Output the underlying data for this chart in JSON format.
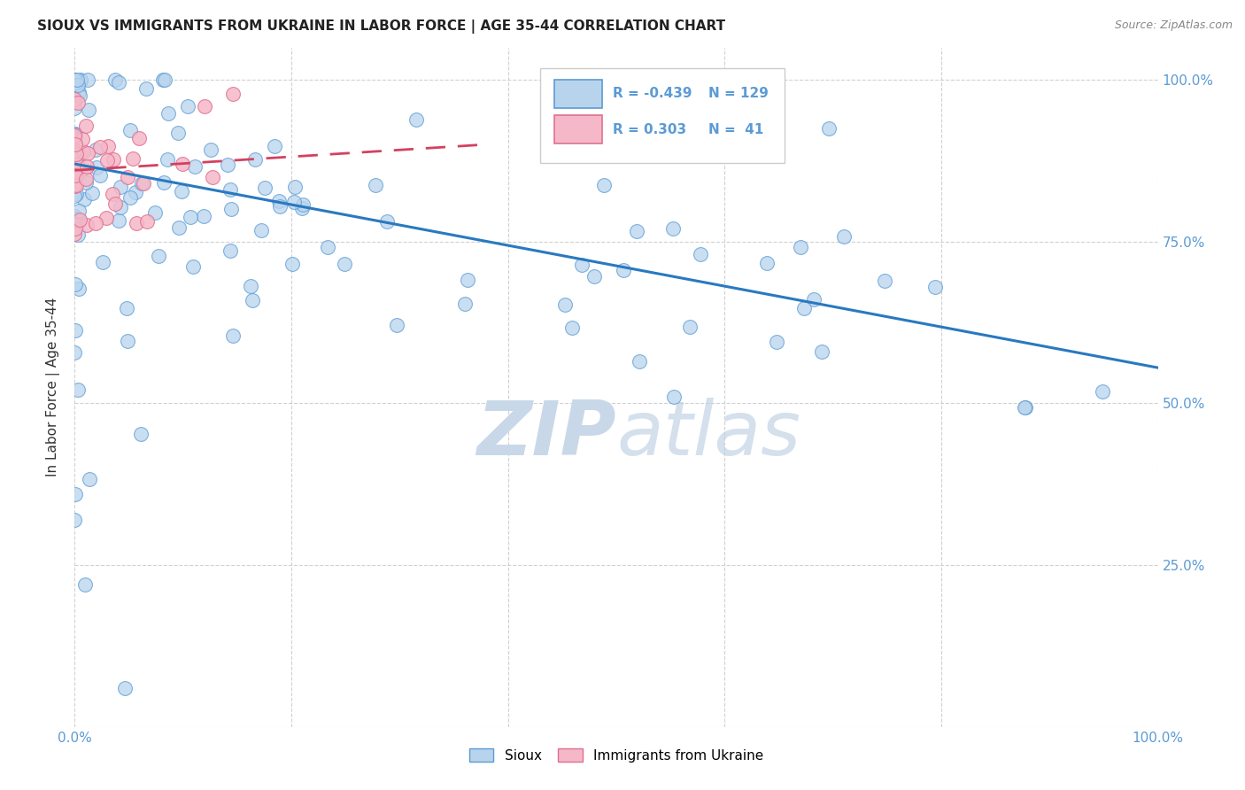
{
  "title": "SIOUX VS IMMIGRANTS FROM UKRAINE IN LABOR FORCE | AGE 35-44 CORRELATION CHART",
  "source": "Source: ZipAtlas.com",
  "ylabel": "In Labor Force | Age 35-44",
  "x_min": 0.0,
  "x_max": 1.0,
  "y_min": 0.0,
  "y_max": 1.05,
  "r_sioux": -0.439,
  "n_sioux": 129,
  "r_ukraine": 0.303,
  "n_ukraine": 41,
  "sioux_color": "#b8d4ed",
  "ukraine_color": "#f5b8c8",
  "sioux_edge_color": "#5b9bd5",
  "ukraine_edge_color": "#e07090",
  "sioux_line_color": "#2979c0",
  "ukraine_line_color": "#d44060",
  "watermark_color": "#c8d8e8",
  "grid_color": "#cccccc",
  "tick_color": "#5b9bd5",
  "title_color": "#222222",
  "source_color": "#888888",
  "ylabel_color": "#333333",
  "sioux_line_y0": 0.87,
  "sioux_line_y1": 0.555,
  "ukraine_line_y0": 0.86,
  "ukraine_line_y1": 0.9,
  "ukraine_line_x1": 0.38
}
